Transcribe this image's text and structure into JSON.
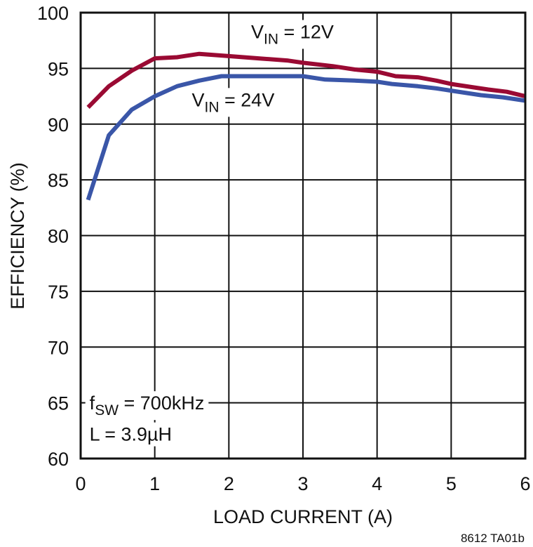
{
  "chart_data": {
    "type": "line",
    "title": "",
    "xlabel": "LOAD CURRENT (A)",
    "ylabel": "EFFICIENCY (%)",
    "xlim": [
      0,
      6
    ],
    "ylim": [
      60,
      100
    ],
    "xticks": [
      0,
      1,
      2,
      3,
      4,
      5,
      6
    ],
    "yticks": [
      60,
      65,
      70,
      75,
      80,
      85,
      90,
      95,
      100
    ],
    "grid": true,
    "legend": "inline labels",
    "series": [
      {
        "name": "VIN = 12V",
        "color": "#9a0a33",
        "x": [
          0.1,
          0.38,
          0.69,
          1.0,
          1.3,
          1.6,
          2.0,
          2.4,
          2.8,
          3.0,
          3.4,
          3.7,
          4.0,
          4.25,
          4.55,
          4.8,
          5.0,
          5.3,
          5.5,
          5.75,
          6.0
        ],
        "y": [
          91.5,
          93.4,
          94.8,
          95.9,
          96.0,
          96.3,
          96.1,
          95.9,
          95.7,
          95.5,
          95.2,
          94.9,
          94.7,
          94.3,
          94.2,
          93.9,
          93.6,
          93.3,
          93.1,
          92.9,
          92.5
        ]
      },
      {
        "name": "VIN = 24V",
        "color": "#3a56a8",
        "x": [
          0.1,
          0.38,
          0.69,
          1.0,
          1.3,
          1.6,
          1.9,
          2.2,
          2.6,
          3.0,
          3.3,
          3.7,
          4.0,
          4.2,
          4.55,
          4.8,
          5.0,
          5.4,
          5.7,
          6.0
        ],
        "y": [
          83.2,
          89.0,
          91.3,
          92.5,
          93.4,
          93.9,
          94.3,
          94.3,
          94.3,
          94.3,
          94.0,
          93.9,
          93.8,
          93.6,
          93.4,
          93.2,
          93.0,
          92.6,
          92.4,
          92.1
        ]
      }
    ],
    "annotations": [
      {
        "text_main": "V",
        "text_sub": "IN",
        "text_rest": " = 12V",
        "x": 2.3,
        "y": 97.7
      },
      {
        "text_main": "V",
        "text_sub": "IN",
        "text_rest": " = 24V",
        "x": 1.5,
        "y": 91.6
      },
      {
        "text_main": "f",
        "text_sub": "SW",
        "text_rest": " = 700kHz",
        "x": 0.12,
        "y": 64.4
      },
      {
        "text_main": "L = 3.9µH",
        "text_sub": "",
        "text_rest": "",
        "x": 0.12,
        "y": 61.6
      }
    ],
    "footer": "8612 TA01b"
  }
}
